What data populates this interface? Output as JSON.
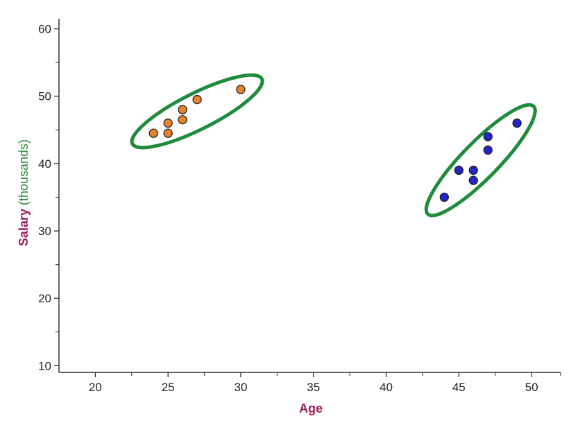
{
  "chart_data": {
    "type": "scatter",
    "title": "",
    "xlabel": "Age",
    "ylabel_parts": [
      {
        "text": "Salary",
        "color": "#9b1b5a",
        "bold": true
      },
      {
        "text": " (thousands)",
        "color": "#2e8b3a",
        "bold": false
      }
    ],
    "xlim": [
      17.5,
      52
    ],
    "ylim": [
      9,
      61.5
    ],
    "x_ticks": [
      20,
      25,
      30,
      35,
      40,
      45,
      50
    ],
    "y_ticks": [
      10,
      20,
      30,
      40,
      50,
      60
    ],
    "grid": false,
    "series": [
      {
        "color": "#e8822e",
        "x": [
          24,
          25,
          25,
          26,
          26,
          27,
          30
        ],
        "y": [
          44.5,
          44.5,
          46,
          46.5,
          48,
          49.5,
          51
        ]
      },
      {
        "color": "#2424c8",
        "x": [
          44,
          45,
          46,
          46,
          47,
          47,
          49
        ],
        "y": [
          35,
          39,
          37.5,
          39,
          42,
          44,
          46
        ]
      }
    ],
    "cluster_outline_color": "#1e8c3a",
    "xlabel_color": "#9b1b5a"
  }
}
